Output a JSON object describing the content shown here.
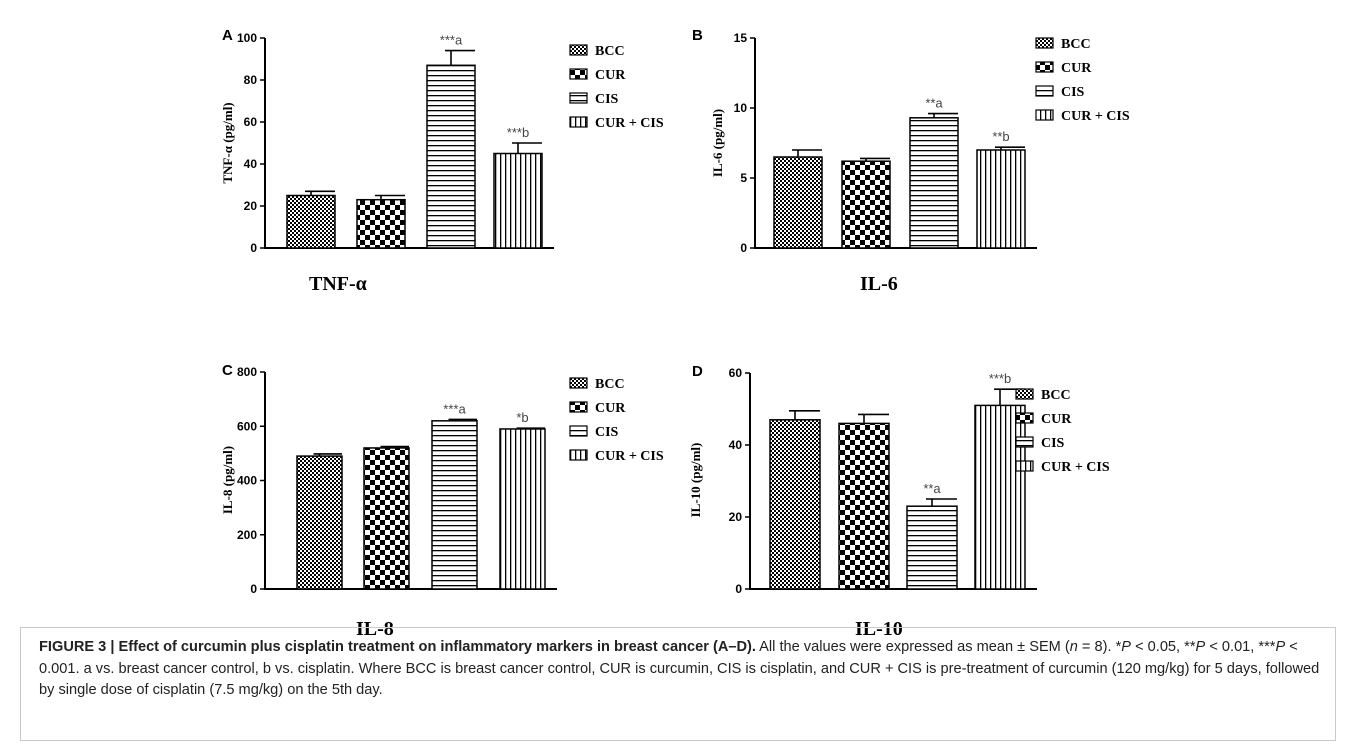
{
  "chart_data": [
    {
      "panel_label": "A",
      "type": "bar",
      "categories": [
        "BCC",
        "CUR",
        "CIS",
        "CUR + CIS"
      ],
      "values": [
        25,
        23,
        87,
        45
      ],
      "errors": [
        2,
        2,
        7,
        5
      ],
      "annotations": [
        "",
        "",
        "***a",
        "***b"
      ],
      "xlabel": "TNF-α",
      "ylabel": "TNF-α (pg/ml)",
      "ylim": [
        0,
        100
      ],
      "yticks": [
        "0",
        "20",
        "40",
        "60",
        "80",
        "100"
      ],
      "legend": [
        "BCC",
        "CUR",
        "CIS",
        "CUR + CIS"
      ],
      "legend_position": "right"
    },
    {
      "panel_label": "B",
      "type": "bar",
      "categories": [
        "BCC",
        "CUR",
        "CIS",
        "CUR + CIS"
      ],
      "values": [
        6.5,
        6.2,
        9.3,
        7.0
      ],
      "errors": [
        0.5,
        0.2,
        0.3,
        0.2
      ],
      "annotations": [
        "",
        "",
        "**a",
        "**b"
      ],
      "xlabel": "IL-6",
      "ylabel": "IL-6 (pg/ml)",
      "ylim": [
        0,
        15
      ],
      "yticks": [
        "0",
        "5",
        "10",
        "15"
      ],
      "legend": [
        "BCC",
        "CUR",
        "CIS",
        "CUR + CIS"
      ],
      "legend_position": "right"
    },
    {
      "panel_label": "C",
      "type": "bar",
      "categories": [
        "BCC",
        "CUR",
        "CIS",
        "CUR + CIS"
      ],
      "values": [
        490,
        520,
        620,
        590
      ],
      "errors": [
        8,
        5,
        5,
        3
      ],
      "annotations": [
        "",
        "",
        "***a",
        "*b"
      ],
      "xlabel": "IL-8",
      "ylabel": "IL-8 (pg/ml)",
      "ylim": [
        0,
        800
      ],
      "yticks": [
        "0",
        "200",
        "400",
        "600",
        "800"
      ],
      "legend": [
        "BCC",
        "CUR",
        "CIS",
        "CUR + CIS"
      ],
      "legend_position": "right"
    },
    {
      "panel_label": "D",
      "type": "bar",
      "categories": [
        "BCC",
        "CUR",
        "CIS",
        "CUR + CIS"
      ],
      "values": [
        47,
        46,
        23,
        51
      ],
      "errors": [
        2.5,
        2.5,
        2,
        4.5
      ],
      "annotations": [
        "",
        "",
        "**a",
        "***b"
      ],
      "xlabel": "IL-10",
      "ylabel": "IL-10 (pg/ml)",
      "ylim": [
        0,
        60
      ],
      "yticks": [
        "0",
        "20",
        "40",
        "60"
      ],
      "legend": [
        "BCC",
        "CUR",
        "CIS",
        "CUR + CIS"
      ],
      "legend_position": "right"
    }
  ],
  "caption": {
    "title": "FIGURE 3 | Effect of curcumin plus cisplatin treatment on inflammatory markers in breast cancer (A–D).",
    "seg1": " All the values were expressed as mean ± SEM (",
    "n_var": "n",
    "seg2": " = 8). *",
    "p1": "P",
    "seg3": " < 0.05, **",
    "p2": "P",
    "seg4": " < 0.01, ***",
    "p3": "P",
    "seg5": " < 0.001. a vs. breast cancer control, b vs. cisplatin. Where BCC is breast cancer control, CUR is curcumin, CIS is cisplatin, and CUR + CIS is pre-treatment of curcumin (120 mg/kg) for 5 days, followed by single dose of cisplatin (7.5 mg/kg) on the 5th day."
  }
}
